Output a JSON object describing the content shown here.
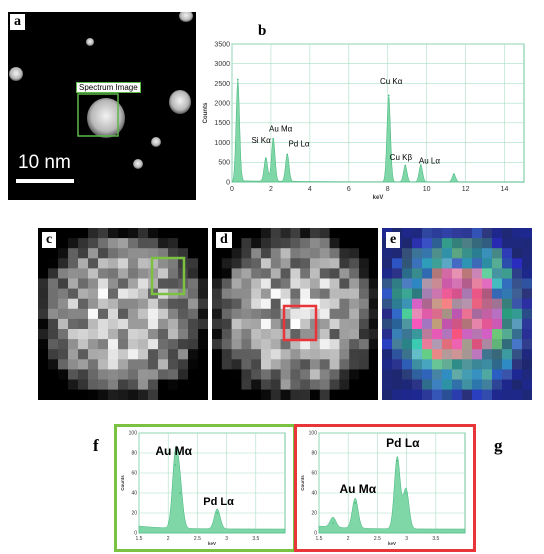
{
  "panels": {
    "a": {
      "label": "a",
      "box_label": "Spectrum Image",
      "scale_bar": "10 nm"
    },
    "b": {
      "label": "b"
    },
    "c": {
      "label": "c"
    },
    "d": {
      "label": "d"
    },
    "e": {
      "label": "e"
    },
    "f": {
      "label": "f"
    },
    "g": {
      "label": "g"
    }
  },
  "colors": {
    "green_box": "#7cc242",
    "red_box": "#e8353a",
    "spectrum_fill": "#7fd6a6",
    "grid": "#a9dfc4"
  },
  "chart_data": [
    {
      "id": "b",
      "type": "area",
      "xlabel": "keV",
      "ylabel": "Counts",
      "xlim": [
        0,
        15
      ],
      "ylim": [
        0,
        3500
      ],
      "xticks": [
        "0",
        "2",
        "4",
        "6",
        "8",
        "10",
        "12",
        "14"
      ],
      "yticks": [
        "0",
        "500",
        "1000",
        "1500",
        "2000",
        "2500",
        "3000",
        "3500"
      ],
      "peaks": [
        {
          "x": 0.3,
          "y": 2600
        },
        {
          "x": 1.74,
          "y": 600
        },
        {
          "x": 2.12,
          "y": 1100
        },
        {
          "x": 2.84,
          "y": 700
        },
        {
          "x": 8.05,
          "y": 2200
        },
        {
          "x": 8.9,
          "y": 420
        },
        {
          "x": 9.7,
          "y": 430
        },
        {
          "x": 11.4,
          "y": 200
        }
      ],
      "annotations": [
        "Si Kα",
        "Au Mα",
        "Pd Lα",
        "Cu Kα",
        "Cu Kβ",
        "Au Lα"
      ]
    },
    {
      "id": "f",
      "type": "area",
      "xlabel": "keV",
      "ylabel": "Counts",
      "xlim": [
        1.5,
        4.0
      ],
      "ylim": [
        0,
        100
      ],
      "xticks": [
        "1.5",
        "2",
        "2.5",
        "3",
        "3.5"
      ],
      "yticks": [
        "0",
        "20",
        "40",
        "60",
        "80",
        "100"
      ],
      "peaks": [
        {
          "x": 2.12,
          "y": 68
        },
        {
          "x": 2.2,
          "y": 40
        },
        {
          "x": 2.84,
          "y": 20
        }
      ],
      "annotations": [
        "Au Mα",
        "Pd Lα"
      ]
    },
    {
      "id": "g",
      "type": "area",
      "xlabel": "keV",
      "ylabel": "Counts",
      "xlim": [
        1.5,
        4.0
      ],
      "ylim": [
        0,
        100
      ],
      "xticks": [
        "1.5",
        "2",
        "2.5",
        "3",
        "3.5"
      ],
      "yticks": [
        "0",
        "20",
        "40",
        "60",
        "80",
        "100"
      ],
      "peaks": [
        {
          "x": 2.12,
          "y": 30
        },
        {
          "x": 2.84,
          "y": 72
        },
        {
          "x": 2.99,
          "y": 40
        },
        {
          "x": 1.74,
          "y": 10
        }
      ],
      "annotations": [
        "Au Mα",
        "Pd Lα"
      ]
    }
  ]
}
